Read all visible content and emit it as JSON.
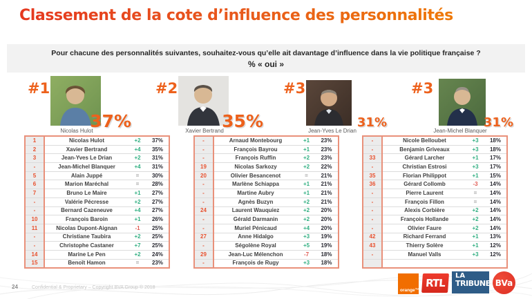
{
  "title": "Classement de la cote d’influence des personnalités",
  "question": {
    "line1": "Pour chacune des personnalités suivantes, souhaitez-vous qu’elle ait davantage d’influence dans la vie politique française ?",
    "line2": "% « oui »"
  },
  "podium": [
    {
      "rank": "#1",
      "name": "Nicolas Hulot",
      "pct": "37%"
    },
    {
      "rank": "#2",
      "name": "Xavier Bertrand",
      "pct": "35%"
    },
    {
      "rank": "#3",
      "name": "Jean-Yves Le Drian",
      "pct": "31%"
    },
    {
      "rank": "#3",
      "name": "Jean-Michel Blanquer",
      "pct": "31%"
    }
  ],
  "tables": [
    {
      "rows": [
        {
          "rank": "1",
          "name": "Nicolas Hulot",
          "change": "+2",
          "pct": "37%"
        },
        {
          "rank": "2",
          "name": "Xavier Bertrand",
          "change": "+4",
          "pct": "35%"
        },
        {
          "rank": "3",
          "name": "Jean-Yves Le Drian",
          "change": "+2",
          "pct": "31%"
        },
        {
          "rank": "-",
          "name": "Jean-Michel Blanquer",
          "change": "+4",
          "pct": "31%"
        },
        {
          "rank": "5",
          "name": "Alain Juppé",
          "change": "=",
          "pct": "30%"
        },
        {
          "rank": "6",
          "name": "Marion Maréchal",
          "change": "=",
          "pct": "28%"
        },
        {
          "rank": "7",
          "name": "Bruno Le Maire",
          "change": "+1",
          "pct": "27%"
        },
        {
          "rank": "-",
          "name": "Valérie Pécresse",
          "change": "+2",
          "pct": "27%"
        },
        {
          "rank": "-",
          "name": "Bernard Cazeneuve",
          "change": "+4",
          "pct": "27%"
        },
        {
          "rank": "10",
          "name": "François Baroin",
          "change": "+1",
          "pct": "26%"
        },
        {
          "rank": "11",
          "name": "Nicolas Dupont-Aignan",
          "change": "-1",
          "pct": "25%"
        },
        {
          "rank": "-",
          "name": "Christiane Taubira",
          "change": "+2",
          "pct": "25%"
        },
        {
          "rank": "-",
          "name": "Christophe Castaner",
          "change": "+7",
          "pct": "25%"
        },
        {
          "rank": "14",
          "name": "Marine Le Pen",
          "change": "+2",
          "pct": "24%"
        },
        {
          "rank": "15",
          "name": "Benoît Hamon",
          "change": "=",
          "pct": "23%"
        }
      ]
    },
    {
      "rows": [
        {
          "rank": "-",
          "name": "Arnaud Montebourg",
          "change": "+1",
          "pct": "23%"
        },
        {
          "rank": "-",
          "name": "François Bayrou",
          "change": "+1",
          "pct": "23%"
        },
        {
          "rank": "-",
          "name": "François Ruffin",
          "change": "+2",
          "pct": "23%"
        },
        {
          "rank": "19",
          "name": "Nicolas Sarkozy",
          "change": "+2",
          "pct": "22%"
        },
        {
          "rank": "20",
          "name": "Olivier Besancenot",
          "change": "=",
          "pct": "21%"
        },
        {
          "rank": "-",
          "name": "Marlène Schiappa",
          "change": "+1",
          "pct": "21%"
        },
        {
          "rank": "-",
          "name": "Martine Aubry",
          "change": "+1",
          "pct": "21%"
        },
        {
          "rank": "-",
          "name": "Agnès Buzyn",
          "change": "+2",
          "pct": "21%"
        },
        {
          "rank": "24",
          "name": "Laurent Wauquiez",
          "change": "+2",
          "pct": "20%"
        },
        {
          "rank": "-",
          "name": "Gérald Darmanin",
          "change": "+2",
          "pct": "20%"
        },
        {
          "rank": "-",
          "name": "Muriel Pénicaud",
          "change": "+4",
          "pct": "20%"
        },
        {
          "rank": "27",
          "name": "Anne Hidalgo",
          "change": "+3",
          "pct": "19%"
        },
        {
          "rank": "-",
          "name": "Ségolène Royal",
          "change": "+5",
          "pct": "19%"
        },
        {
          "rank": "29",
          "name": "Jean-Luc Mélenchon",
          "change": "-7",
          "pct": "18%"
        },
        {
          "rank": "-",
          "name": "François de Rugy",
          "change": "+3",
          "pct": "18%"
        }
      ]
    },
    {
      "rows": [
        {
          "rank": "-",
          "name": "Nicole Belloubet",
          "change": "+3",
          "pct": "18%"
        },
        {
          "rank": "-",
          "name": "Benjamin Griveaux",
          "change": "+3",
          "pct": "18%"
        },
        {
          "rank": "33",
          "name": "Gérard Larcher",
          "change": "+1",
          "pct": "17%"
        },
        {
          "rank": "-",
          "name": "Christian Estrosi",
          "change": "+3",
          "pct": "17%"
        },
        {
          "rank": "35",
          "name": "Florian Philippot",
          "change": "+1",
          "pct": "15%"
        },
        {
          "rank": "36",
          "name": "Gérard Collomb",
          "change": "-3",
          "pct": "14%"
        },
        {
          "rank": "-",
          "name": "Pierre Laurent",
          "change": "=",
          "pct": "14%"
        },
        {
          "rank": "-",
          "name": "François Fillon",
          "change": "=",
          "pct": "14%"
        },
        {
          "rank": "-",
          "name": "Alexis Corbière",
          "change": "+2",
          "pct": "14%"
        },
        {
          "rank": "-",
          "name": "François Hollande",
          "change": "+2",
          "pct": "14%"
        },
        {
          "rank": "-",
          "name": "Olivier Faure",
          "change": "+2",
          "pct": "14%"
        },
        {
          "rank": "42",
          "name": "Richard Ferrand",
          "change": "+1",
          "pct": "13%"
        },
        {
          "rank": "43",
          "name": "Thierry Solère",
          "change": "+1",
          "pct": "12%"
        },
        {
          "rank": "-",
          "name": "Manuel Valls",
          "change": "+3",
          "pct": "12%"
        },
        {
          "rank": "",
          "name": "",
          "change": "",
          "pct": ""
        }
      ]
    }
  ],
  "footer": {
    "page": "24",
    "copyright": "Confidential & Proprietary – Copyright BVA Group ®  2018",
    "logos": {
      "orange": "orange™",
      "rtl": "RTL",
      "tribune_line1": "LA",
      "tribune_line2": "TRIBUNE",
      "bva": "BVa"
    }
  },
  "colors": {
    "accent_orange": "#ed611c",
    "title_red": "#e5381f",
    "title_orange": "#f08200",
    "positive_change": "#2fae80",
    "negative_change": "#e05a52",
    "neutral_change": "#9e9e9e",
    "table_border": "#e9907a"
  }
}
